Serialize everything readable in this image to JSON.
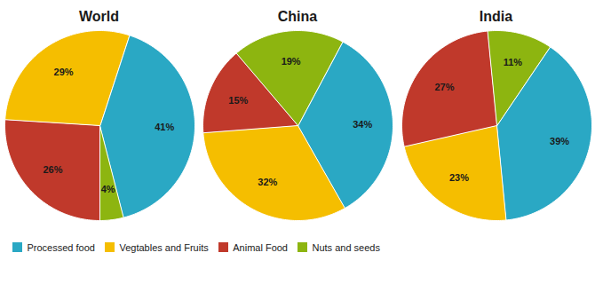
{
  "chart_data": [
    {
      "type": "pie",
      "title": "World",
      "categories": [
        "Processed food",
        "Nuts and seeds",
        "Animal Food",
        "Vegtables and Fruits"
      ],
      "values": [
        41,
        4,
        26,
        29
      ],
      "value_labels": [
        "41%",
        "4%",
        "26%",
        "29%"
      ],
      "colors": [
        "#2AA8C4",
        "#8DB510",
        "#C0392B",
        "#F5BE00"
      ],
      "data_labels": true,
      "legend": "bottom left"
    },
    {
      "type": "pie",
      "title": "China",
      "categories": [
        "Processed food",
        "Vegtables and Fruits",
        "Animal Food",
        "Nuts and seeds"
      ],
      "values": [
        34,
        32,
        15,
        19
      ],
      "value_labels": [
        "34%",
        "32%",
        "15%",
        "19%"
      ],
      "colors": [
        "#2AA8C4",
        "#F5BE00",
        "#C0392B",
        "#8DB510"
      ],
      "data_labels": true,
      "legend": "bottom left"
    },
    {
      "type": "pie",
      "title": "India",
      "categories": [
        "Processed food",
        "Vegtables and Fruits",
        "Animal Food",
        "Nuts and seeds"
      ],
      "values": [
        39,
        23,
        27,
        11
      ],
      "value_labels": [
        "39%",
        "23%",
        "27%",
        "11%"
      ],
      "colors": [
        "#2AA8C4",
        "#F5BE00",
        "#C0392B",
        "#8DB510"
      ],
      "data_labels": true,
      "legend": "bottom left"
    }
  ]
}
